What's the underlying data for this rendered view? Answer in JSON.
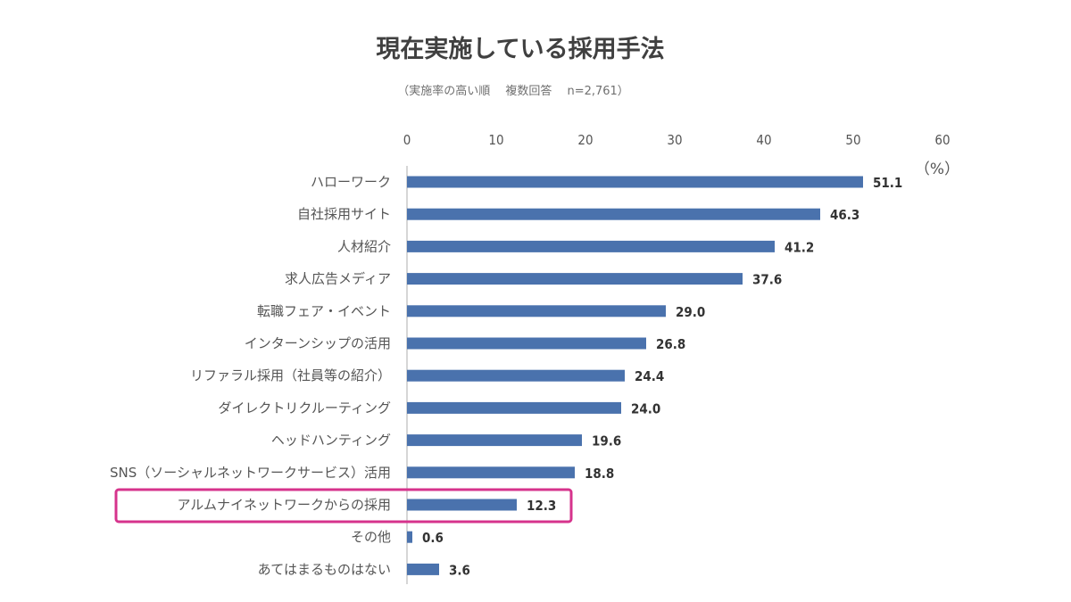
{
  "chart_data": {
    "type": "bar",
    "orientation": "horizontal",
    "title": "現在実施している採用手法",
    "subtitle": "（実施率の高い順　 複数回答　 n=2,761）",
    "unit_label": "（%）",
    "xlim": [
      0,
      60
    ],
    "x_ticks": [
      "0",
      "10",
      "20",
      "30",
      "40",
      "50",
      "60"
    ],
    "tick_position": "top",
    "grid": false,
    "categories": [
      "ハローワーク",
      "自社採用サイト",
      "人材紹介",
      "求人広告メディア",
      "転職フェア・イベント",
      "インターンシップの活用",
      "リファラル採用（社員等の紹介）",
      "ダイレクトリクルーティング",
      "ヘッドハンティング",
      "SNS（ソーシャルネットワークサービス）活用",
      "アルムナイネットワークからの採用",
      "その他",
      "あてはまるものはない"
    ],
    "values": [
      51.1,
      46.3,
      41.2,
      37.6,
      29.0,
      26.8,
      24.4,
      24.0,
      19.6,
      18.8,
      12.3,
      0.6,
      3.6
    ],
    "value_labels": [
      "51.1",
      "46.3",
      "41.2",
      "37.6",
      "29.0",
      "26.8",
      "24.4",
      "24.0",
      "19.6",
      "18.8",
      "12.3",
      "0.6",
      "3.6"
    ],
    "highlight_category": "アルムナイネットワークからの採用",
    "colors": {
      "bar": "#4a72ad",
      "highlight": "#d6338c",
      "axis": "#c8c8c8"
    }
  }
}
